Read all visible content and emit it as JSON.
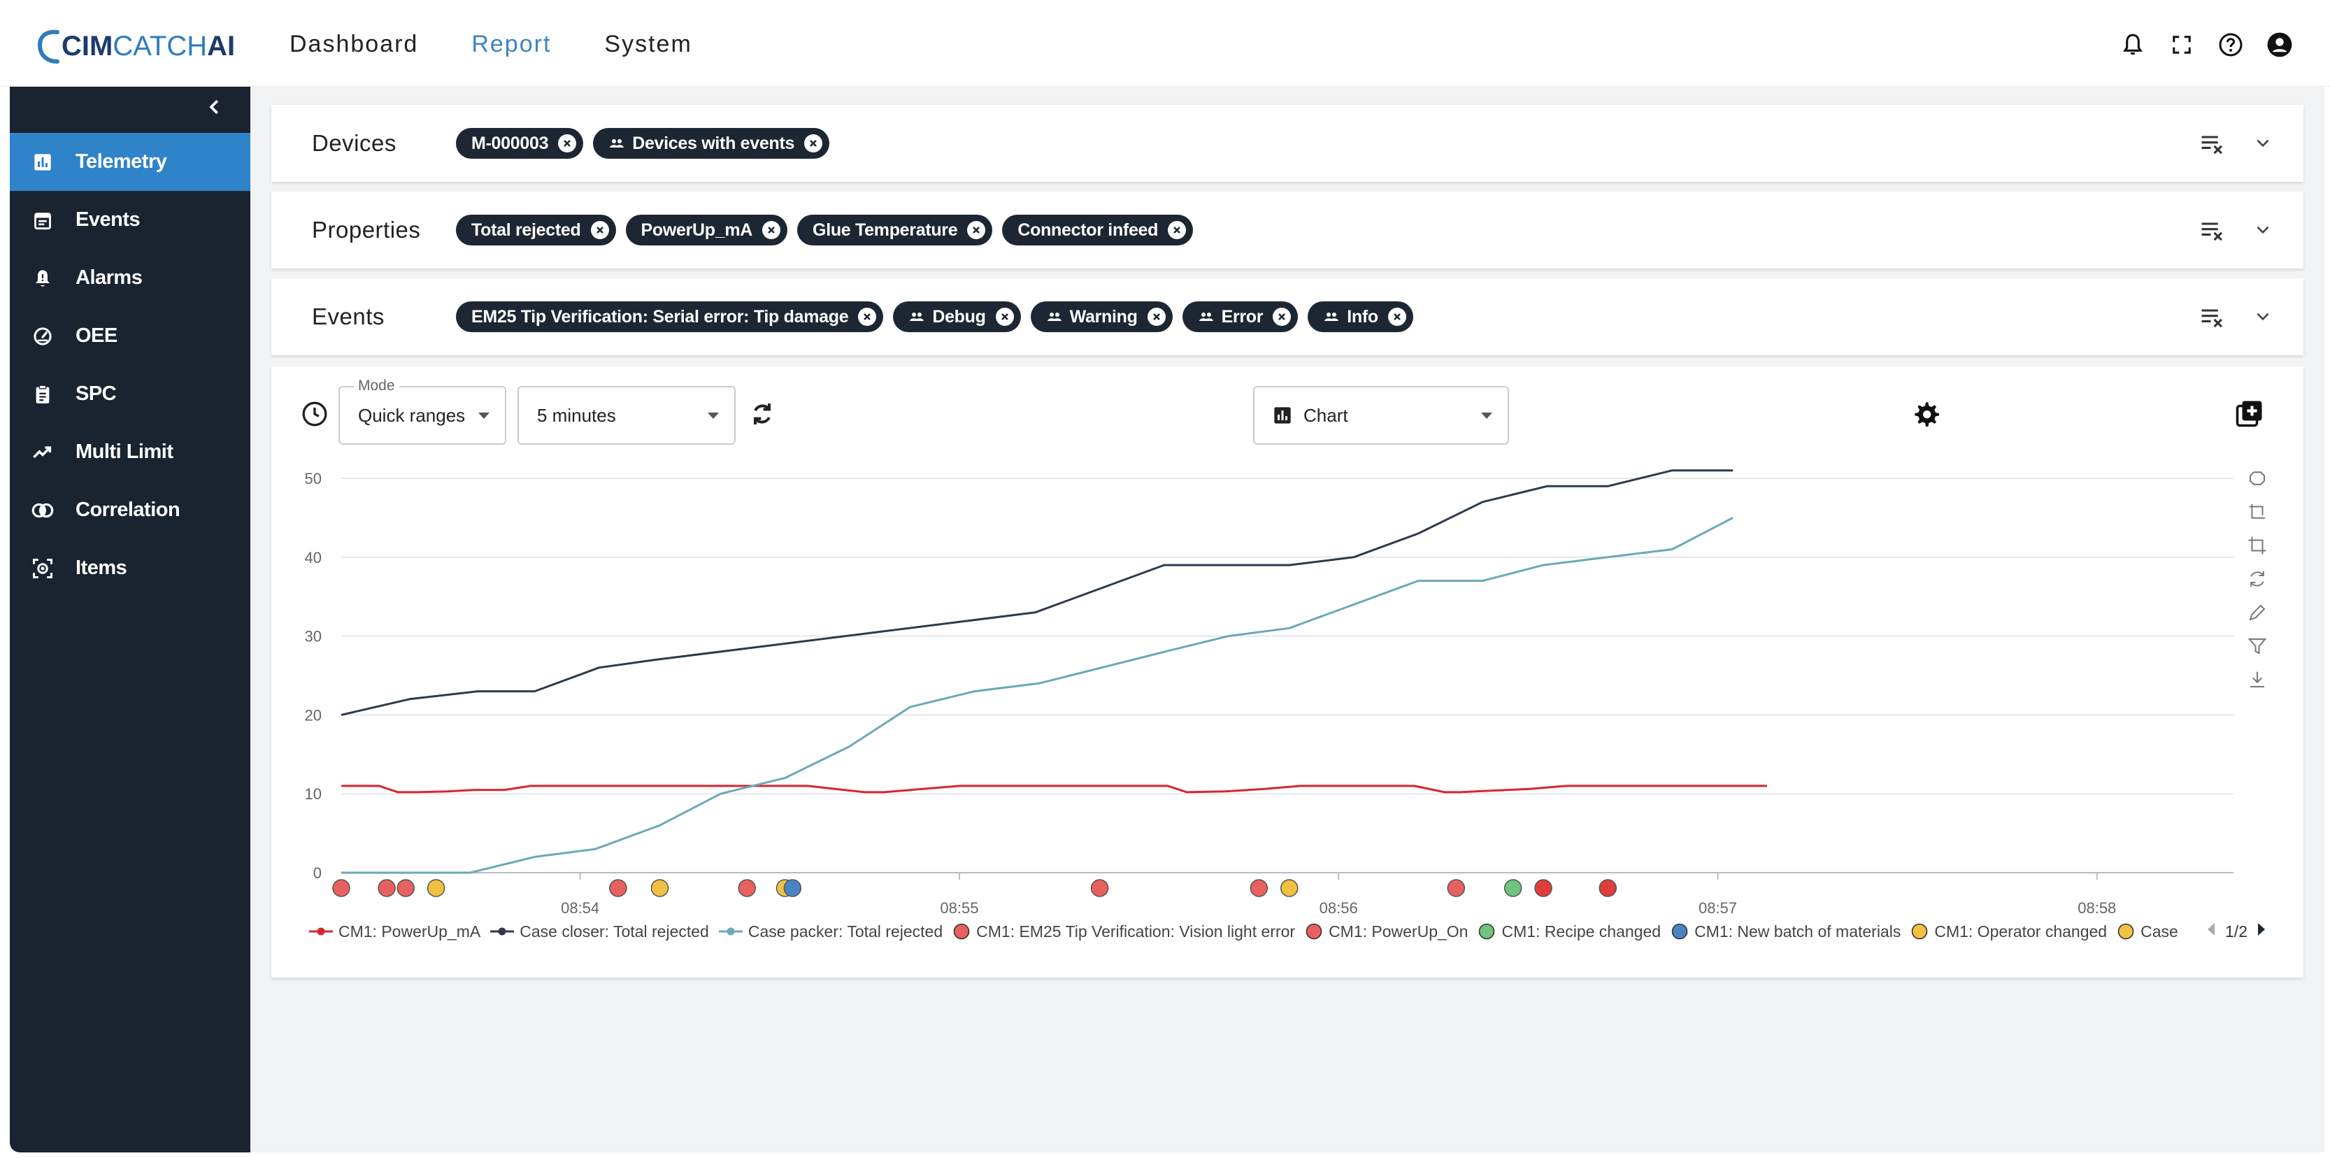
{
  "brand": {
    "part1": "CIM",
    "part2": "CATCH",
    "part3": "AI"
  },
  "top_nav": [
    {
      "label": "Dashboard",
      "active": false
    },
    {
      "label": "Report",
      "active": true
    },
    {
      "label": "System",
      "active": false
    }
  ],
  "top_icons": [
    "bell-icon",
    "fullscreen-icon",
    "help-icon",
    "account-icon"
  ],
  "sidebar": {
    "items": [
      {
        "label": "Telemetry",
        "icon": "bar-chart-icon",
        "active": true
      },
      {
        "label": "Events",
        "icon": "calendar-icon",
        "active": false
      },
      {
        "label": "Alarms",
        "icon": "bell-icon",
        "active": false
      },
      {
        "label": "OEE",
        "icon": "gauge-icon",
        "active": false
      },
      {
        "label": "SPC",
        "icon": "clipboard-icon",
        "active": false
      },
      {
        "label": "Multi Limit",
        "icon": "trend-icon",
        "active": false
      },
      {
        "label": "Correlation",
        "icon": "correlation-icon",
        "active": false
      },
      {
        "label": "Items",
        "icon": "items-scan-icon",
        "active": false
      }
    ]
  },
  "filters": {
    "devices": {
      "title": "Devices",
      "chips": [
        {
          "label": "M-000003",
          "group": false
        },
        {
          "label": "Devices with events",
          "group": true
        }
      ]
    },
    "properties": {
      "title": "Properties",
      "chips": [
        {
          "label": "Total rejected",
          "group": false
        },
        {
          "label": "PowerUp_mA",
          "group": false
        },
        {
          "label": "Glue Temperature",
          "group": false
        },
        {
          "label": "Connector infeed",
          "group": false
        }
      ]
    },
    "events": {
      "title": "Events",
      "chips": [
        {
          "label": "EM25 Tip Verification: Serial error: Tip damage",
          "group": false
        },
        {
          "label": "Debug",
          "group": true
        },
        {
          "label": "Warning",
          "group": true
        },
        {
          "label": "Error",
          "group": true
        },
        {
          "label": "Info",
          "group": true
        }
      ]
    }
  },
  "toolbar": {
    "mode_legend": "Mode",
    "mode_value": "Quick ranges",
    "range_value": "5 minutes",
    "view_value": "Chart"
  },
  "chart_data": {
    "type": "line",
    "x_ticks": [
      "08:54",
      "08:55",
      "08:56",
      "08:57",
      "08:58"
    ],
    "x_tick_minutes": [
      54,
      55,
      56,
      57,
      58
    ],
    "xlim_minutes": [
      53.37,
      58.36
    ],
    "y_ticks": [
      0,
      10,
      20,
      30,
      40,
      50
    ],
    "ylim": [
      0,
      50
    ],
    "grid": true,
    "legend_position": "bottom",
    "series": [
      {
        "name": "CM1: PowerUp_mA",
        "color": "#d9262c",
        "x_minutes": [
          53.37,
          53.47,
          53.52,
          53.57,
          53.65,
          53.72,
          53.8,
          53.87,
          54.0,
          54.2,
          54.4,
          54.6,
          54.75,
          54.8,
          54.9,
          55.0,
          55.2,
          55.4,
          55.55,
          55.6,
          55.7,
          55.8,
          55.9,
          56.0,
          56.2,
          56.28,
          56.32,
          56.4,
          56.5,
          56.6,
          56.8,
          57.0,
          57.13
        ],
        "values": [
          11,
          11,
          10.2,
          10.2,
          10.3,
          10.5,
          10.5,
          11,
          11,
          11,
          11,
          11,
          10.2,
          10.2,
          10.6,
          11,
          11,
          11,
          11,
          10.2,
          10.3,
          10.6,
          11,
          11,
          11,
          10.2,
          10.2,
          10.4,
          10.6,
          11,
          11,
          11,
          11
        ]
      },
      {
        "name": "Case closer: Total rejected",
        "color": "#2d3a4d",
        "x_minutes": [
          53.37,
          53.55,
          53.73,
          53.88,
          54.05,
          54.2,
          55.2,
          55.54,
          55.87,
          56.04,
          56.21,
          56.38,
          56.55,
          56.71,
          56.88,
          57.04
        ],
        "values": [
          20,
          22,
          23,
          23,
          26,
          27,
          33,
          39,
          39,
          40,
          43,
          47,
          49,
          49,
          51,
          51
        ]
      },
      {
        "name": "Case packer: Total rejected",
        "color": "#6aa9b7",
        "x_minutes": [
          53.37,
          53.54,
          53.71,
          53.88,
          54.04,
          54.21,
          54.37,
          54.54,
          54.71,
          54.87,
          55.04,
          55.21,
          55.54,
          55.71,
          55.87,
          56.04,
          56.21,
          56.38,
          56.54,
          56.71,
          56.88,
          57.04
        ],
        "values": [
          0,
          0,
          0,
          2,
          3,
          6,
          10,
          12,
          16,
          21,
          23,
          24,
          28,
          30,
          31,
          34,
          37,
          37,
          39,
          40,
          41,
          45
        ]
      }
    ],
    "event_markers": [
      {
        "minute": 53.37,
        "color": "#e8615f",
        "label": "CM1: EM25 Tip Verification: Vision light error"
      },
      {
        "minute": 53.49,
        "color": "#e8615f",
        "label": "CM1: PowerUp_On"
      },
      {
        "minute": 53.54,
        "color": "#e8615f",
        "label": "CM1: PowerUp_On"
      },
      {
        "minute": 53.62,
        "color": "#f2c142",
        "label": "CM1: Operator changed"
      },
      {
        "minute": 54.1,
        "color": "#e8615f",
        "label": "CM1: PowerUp_On"
      },
      {
        "minute": 54.21,
        "color": "#f2c142",
        "label": "CM1: Operator changed"
      },
      {
        "minute": 54.44,
        "color": "#e8615f",
        "label": "CM1: PowerUp_On"
      },
      {
        "minute": 54.54,
        "color": "#f2c142",
        "label": "CM1: Operator changed"
      },
      {
        "minute": 54.56,
        "color": "#4b84c3",
        "label": "CM1: New batch of materials"
      },
      {
        "minute": 55.37,
        "color": "#e8615f",
        "label": "CM1: PowerUp_On"
      },
      {
        "minute": 55.79,
        "color": "#e8615f",
        "label": "CM1: PowerUp_On"
      },
      {
        "minute": 55.87,
        "color": "#f2c142",
        "label": "CM1: Operator changed"
      },
      {
        "minute": 56.31,
        "color": "#e8615f",
        "label": "CM1: PowerUp_On"
      },
      {
        "minute": 56.46,
        "color": "#6ec47a",
        "label": "CM1: Recipe changed"
      },
      {
        "minute": 56.54,
        "color": "#e03c3c",
        "label": "CM1: PowerUp_On"
      },
      {
        "minute": 56.71,
        "color": "#e03c3c",
        "label": "CM1: PowerUp_On"
      }
    ],
    "legend": [
      {
        "label": "CM1: PowerUp_mA",
        "kind": "line",
        "color": "#d9262c"
      },
      {
        "label": "Case closer: Total rejected",
        "kind": "line",
        "color": "#2d3a4d"
      },
      {
        "label": "Case packer: Total rejected",
        "kind": "line",
        "color": "#6aa9b7"
      },
      {
        "label": "CM1: EM25 Tip Verification: Vision light error",
        "kind": "dot",
        "color": "#e8615f"
      },
      {
        "label": "CM1: PowerUp_On",
        "kind": "dot",
        "color": "#e8615f"
      },
      {
        "label": "CM1: Recipe changed",
        "kind": "dot",
        "color": "#6ec47a"
      },
      {
        "label": "CM1: New batch of materials",
        "kind": "dot",
        "color": "#4b84c3"
      },
      {
        "label": "CM1: Operator changed",
        "kind": "dot",
        "color": "#f2c142"
      },
      {
        "label": "Case",
        "kind": "dot",
        "color": "#f2c142"
      }
    ],
    "legend_page": "1/2"
  },
  "chart_tools": [
    "zoom-select-icon",
    "zoom-back-icon",
    "crop-icon",
    "reset-icon",
    "brush-icon",
    "filter-icon",
    "download-icon"
  ]
}
